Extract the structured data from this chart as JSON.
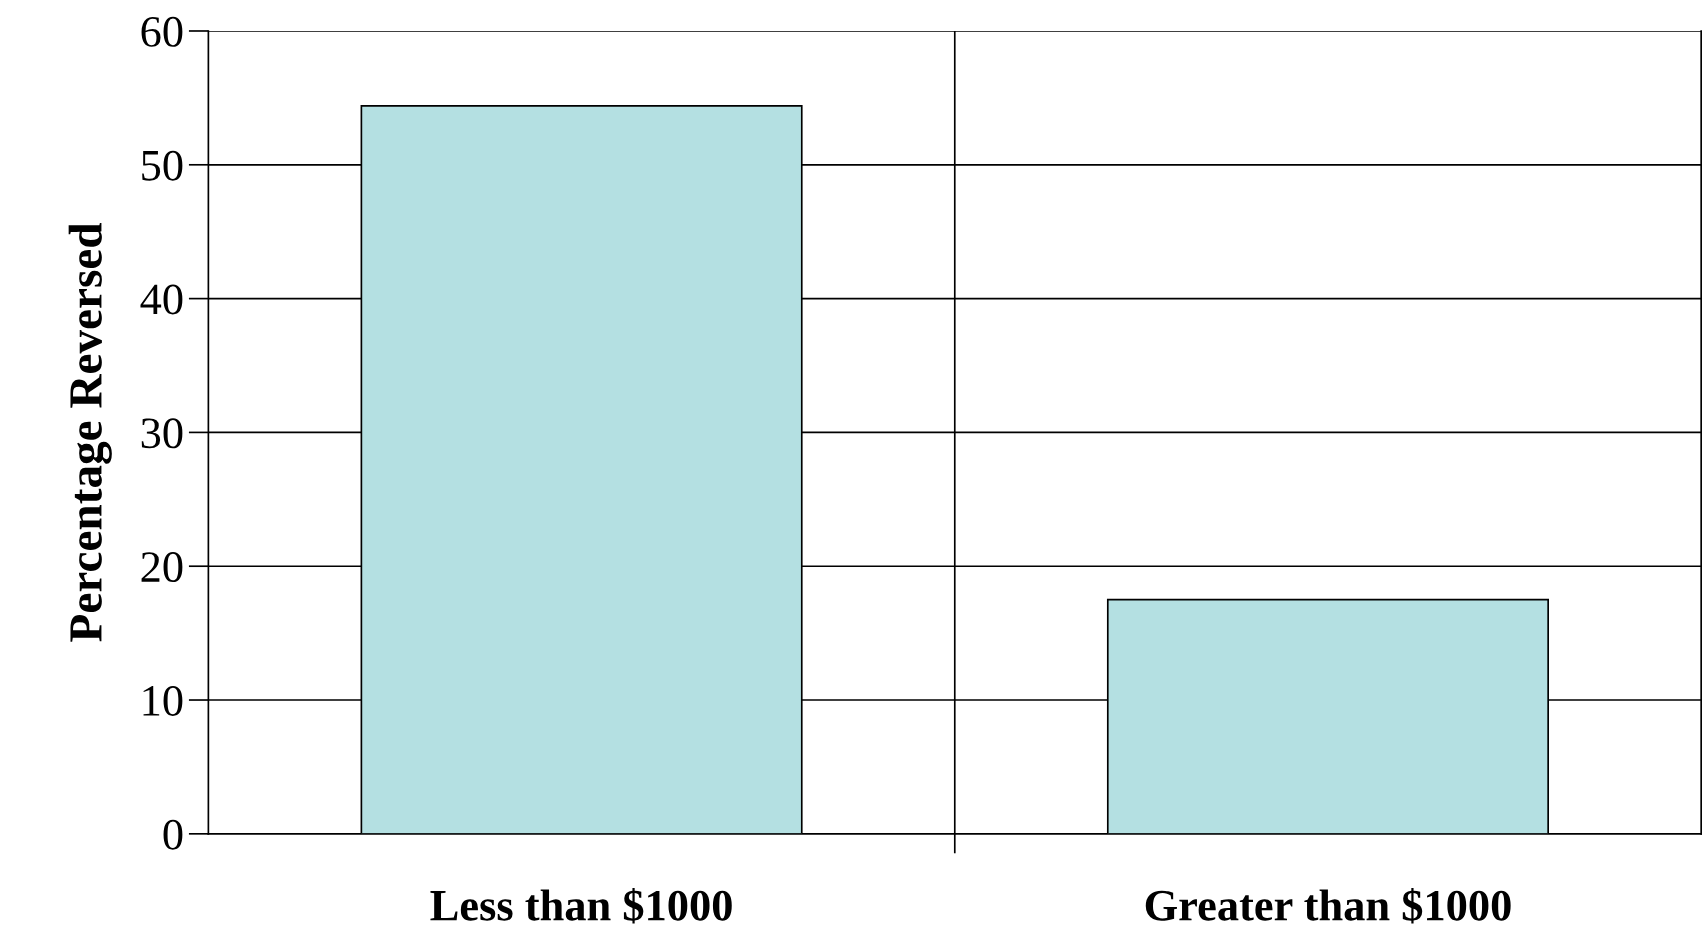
{
  "chart_data": {
    "type": "bar",
    "ylabel": "Percentage Reversed",
    "categories": [
      "Less than $1000",
      "Greater than $1000"
    ],
    "values": [
      54.4,
      17.5
    ],
    "color": "#b4e0e2",
    "ylim": [
      0,
      60
    ],
    "yticks": [
      0,
      10,
      20,
      30,
      40,
      50,
      60
    ],
    "grid": "y"
  }
}
